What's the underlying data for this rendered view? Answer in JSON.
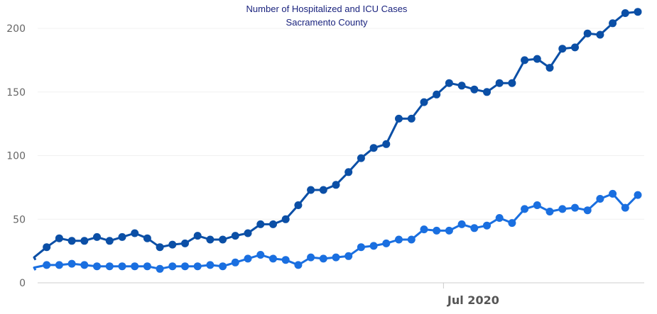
{
  "chart_data": {
    "type": "line",
    "title": "Number of Hospitalized and ICU Cases",
    "subtitle": "Sacramento County",
    "xlabel": "",
    "ylabel": "",
    "ylim": [
      0,
      210
    ],
    "yticks": [
      0,
      50,
      100,
      150,
      200
    ],
    "xticks": [
      {
        "label": "Jul 2020",
        "index": 33
      }
    ],
    "grid": true,
    "legend": "none",
    "series": [
      {
        "color": "#0b4fa6",
        "values": [
          20,
          28,
          35,
          33,
          33,
          36,
          33,
          36,
          39,
          35,
          28,
          30,
          31,
          37,
          34,
          34,
          37,
          39,
          46,
          46,
          50,
          61,
          73,
          73,
          77,
          87,
          98,
          106,
          109,
          129,
          129,
          142,
          148,
          157,
          155,
          152,
          150,
          157,
          157,
          175,
          176,
          169,
          184,
          185,
          196,
          195,
          204,
          212,
          213
        ]
      },
      {
        "color": "#1a6fe0",
        "values": [
          12,
          14,
          14,
          15,
          14,
          13,
          13,
          13,
          13,
          13,
          11,
          13,
          13,
          13,
          14,
          13,
          16,
          19,
          22,
          19,
          18,
          14,
          20,
          19,
          20,
          21,
          28,
          29,
          31,
          34,
          34,
          42,
          41,
          41,
          46,
          43,
          45,
          51,
          47,
          58,
          61,
          56,
          58,
          59,
          57,
          66,
          70,
          59,
          69
        ]
      }
    ]
  }
}
